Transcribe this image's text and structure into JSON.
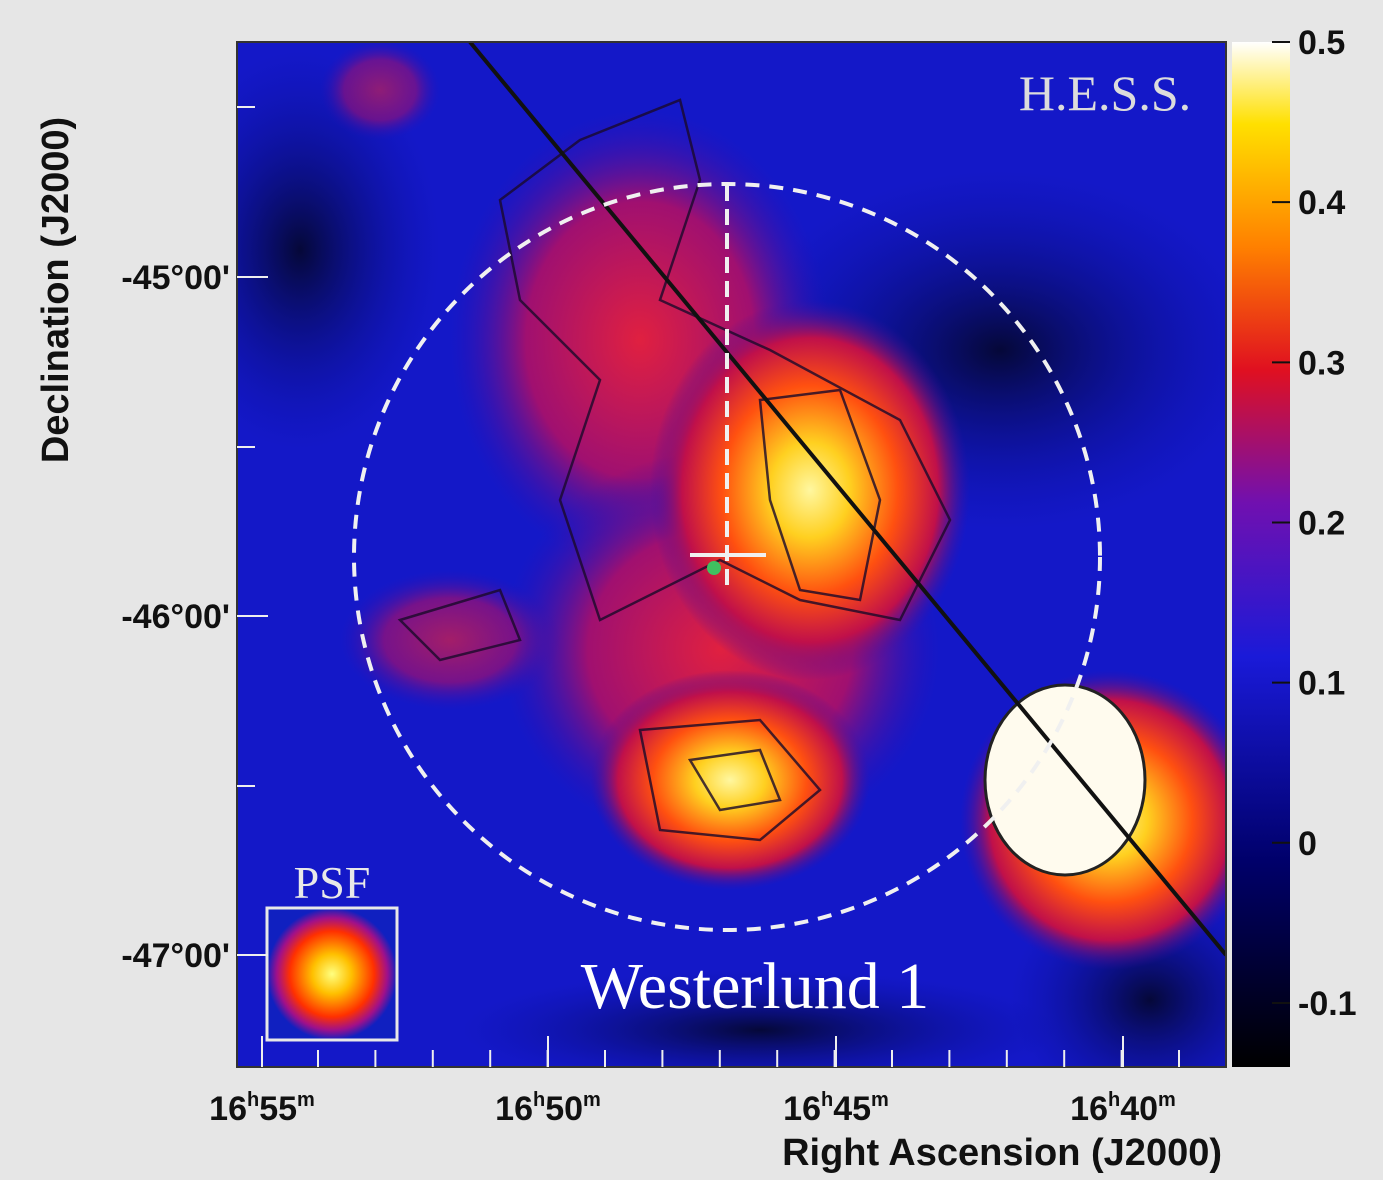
{
  "figure": {
    "instrument_label": "H.E.S.S.",
    "psf_label": "PSF",
    "caption": "Westerlund 1",
    "x_axis": {
      "title": "Right Ascension (J2000)",
      "hour_unit": "h",
      "minute_unit": "m",
      "ticks": [
        {
          "hour": "16",
          "minute": "55"
        },
        {
          "hour": "16",
          "minute": "50"
        },
        {
          "hour": "16",
          "minute": "45"
        },
        {
          "hour": "16",
          "minute": "40"
        }
      ]
    },
    "y_axis": {
      "title": "Declination (J2000)",
      "ticks": [
        "-45°00'",
        "-46°00'",
        "-47°00'"
      ]
    },
    "colorbar": {
      "lim": [
        -0.14,
        0.5
      ],
      "ticks": [
        0.5,
        0.4,
        0.3,
        0.2,
        0.1,
        0,
        -0.1
      ]
    }
  }
}
